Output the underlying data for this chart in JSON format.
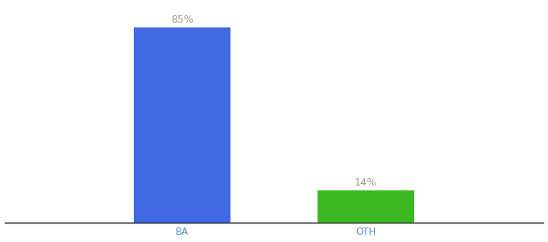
{
  "categories": [
    "BA",
    "OTH"
  ],
  "values": [
    85,
    14
  ],
  "bar_colors": [
    "#4169e1",
    "#3cb825"
  ],
  "label_color": "#999988",
  "label_fontsize": 9,
  "tick_color": "#5b8dc8",
  "tick_fontsize": 8.5,
  "background_color": "#ffffff",
  "ylim": [
    0,
    95
  ],
  "bar_width": 0.18,
  "x_positions": [
    0.33,
    0.67
  ],
  "xlim": [
    0.0,
    1.0
  ]
}
